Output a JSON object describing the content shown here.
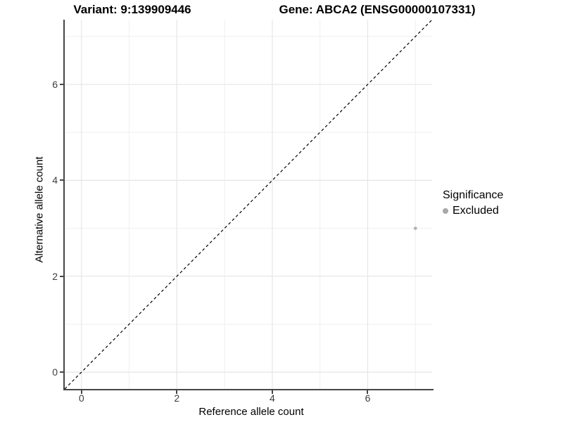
{
  "header": {
    "variant_title": "Variant: 9:139909446",
    "gene_title": "Gene: ABCA2 (ENSG00000107331)"
  },
  "legend": {
    "title": "Significance",
    "items": [
      {
        "label": "Excluded",
        "marker": "circle",
        "color": "#a8a8a8"
      }
    ]
  },
  "chart_data": {
    "type": "scatter",
    "title": "Variant: 9:139909446   Gene: ABCA2 (ENSG00000107331)",
    "xlabel": "Reference allele count",
    "ylabel": "Alternative allele count",
    "xlim": [
      -0.35,
      7.35
    ],
    "ylim": [
      -0.35,
      7.35
    ],
    "xticks": [
      0,
      2,
      4,
      6
    ],
    "yticks": [
      0,
      2,
      4,
      6
    ],
    "minor_xticks": [
      1,
      3,
      5,
      7
    ],
    "minor_yticks": [
      1,
      3,
      5,
      7
    ],
    "grid": "major+minor",
    "grid_major_color": "#e6e6e6",
    "grid_minor_color": "#efefef",
    "axis_line_color": "#464646",
    "legend_position": "right",
    "reference_line": {
      "type": "identity y=x",
      "style": "dashed",
      "color": "#000000",
      "x1": -0.35,
      "y1": -0.35,
      "x2": 7.35,
      "y2": 7.35
    },
    "series": [
      {
        "name": "Excluded",
        "marker": "circle",
        "color": "#b3b3b3",
        "point_radius": 2.4,
        "points": [
          {
            "x": 7,
            "y": 3
          }
        ]
      }
    ]
  }
}
